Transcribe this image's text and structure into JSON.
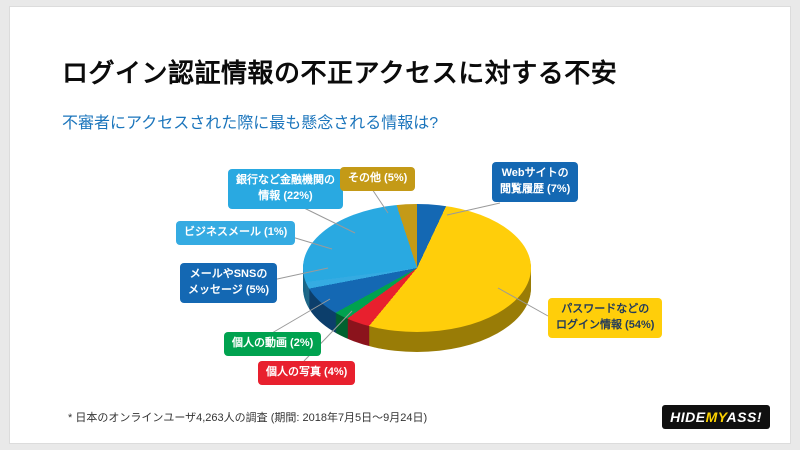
{
  "slide": {
    "title": "ログイン認証情報の不正アクセスに対する不安",
    "subtitle": "不審者にアクセスされた際に最も懸念される情報は?",
    "footnote": "* 日本のオンラインユーザ4,263人の調査 (期間: 2018年7月5日〜9月24日)"
  },
  "logo": {
    "part1": "HIDE",
    "part2": "MY",
    "part3": "ASS!"
  },
  "chart_data": {
    "type": "pie",
    "style": "3d",
    "title": "不審者にアクセスされた際に最も懸念される情報は?",
    "units": "percent",
    "total": 100,
    "start_angle_deg": 0,
    "direction": "clockwise",
    "legend_position": "callouts",
    "slices": [
      {
        "id": "web-history",
        "label": "Webサイトの閲覧履歴",
        "value": 7,
        "color": "#1468b3",
        "text_color": "#ffffff",
        "lines": [
          "Webサイトの",
          "閲覧履歴 (7%)"
        ]
      },
      {
        "id": "passwords",
        "label": "パスワードなどのログイン情報",
        "value": 54,
        "color": "#ffce0a",
        "text_color": "#233b5b",
        "lines": [
          "パスワードなどの",
          "ログイン情報 (54%)"
        ]
      },
      {
        "id": "photos",
        "label": "個人の写真",
        "value": 4,
        "color": "#e8202e",
        "text_color": "#ffffff",
        "lines": [
          "個人の写真 (4%)"
        ]
      },
      {
        "id": "videos",
        "label": "個人の動画",
        "value": 2,
        "color": "#00a24f",
        "text_color": "#ffffff",
        "lines": [
          "個人の動画 (2%)"
        ]
      },
      {
        "id": "mail-sns",
        "label": "メールやSNSのメッセージ",
        "value": 5,
        "color": "#1468b3",
        "text_color": "#ffffff",
        "lines": [
          "メールやSNSの",
          "メッセージ (5%)"
        ]
      },
      {
        "id": "business-mail",
        "label": "ビジネスメール",
        "value": 1,
        "color": "#35abe2",
        "text_color": "#ffffff",
        "lines": [
          "ビジネスメール (1%)"
        ]
      },
      {
        "id": "bank-info",
        "label": "銀行など金融機関の情報",
        "value": 22,
        "color": "#29a9e1",
        "text_color": "#ffffff",
        "lines": [
          "銀行など金融機関の",
          "情報 (22%)"
        ]
      },
      {
        "id": "other",
        "label": "その他",
        "value": 5,
        "color": "#c49a17",
        "text_color": "#ffffff",
        "lines": [
          "その他 (5%)"
        ]
      }
    ]
  }
}
